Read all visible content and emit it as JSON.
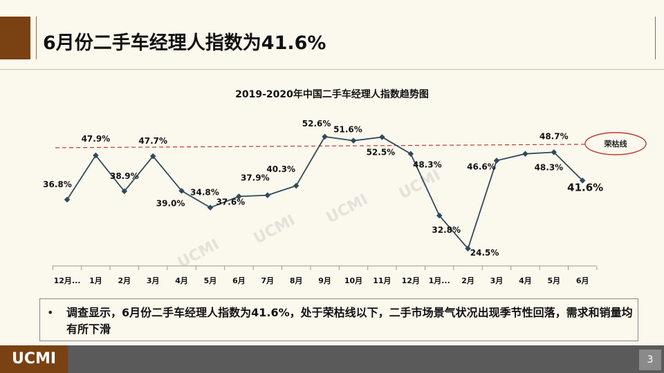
{
  "slide": {
    "title": "6月份二手车经理人指数为41.6%",
    "summary_bullet": "•",
    "summary": "调查显示，6月份二手车经理人指数为41.6%，处于荣枯线以下，二手市场景气状况出现季节性回落，需求和销量均有所下滑",
    "logo": "UCMI",
    "page_number": "3",
    "watermarks": [
      "UCMI",
      "UCMI",
      "UCMI",
      "UCMI"
    ]
  },
  "chart_data": {
    "type": "line",
    "title": "2019-2020年中国二手车经理人指数趋势图",
    "categories": [
      "12月...",
      "1月",
      "2月",
      "3月",
      "4月",
      "5月",
      "6月",
      "7月",
      "8月",
      "9月",
      "10月",
      "11月",
      "12月",
      "1月...",
      "2月",
      "3月",
      "4月",
      "5月",
      "6月"
    ],
    "values": [
      36.8,
      47.9,
      38.9,
      47.7,
      39.0,
      34.8,
      37.6,
      37.9,
      40.3,
      52.6,
      51.6,
      52.5,
      48.3,
      32.8,
      24.5,
      46.6,
      48.3,
      48.7,
      41.6
    ],
    "labels": [
      "36.8%",
      "47.9%",
      "38.9%",
      "47.7%",
      "39.0%",
      "34.8%",
      "37.6%",
      "37.9%",
      "40.3%",
      "52.6%",
      "51.6%",
      "52.5%",
      "48.3%",
      "32.8%",
      "24.5%",
      "46.6%",
      "48.3%",
      "48.7%",
      "41.6%"
    ],
    "reference_line": {
      "value": 50,
      "label": "荣枯线",
      "color": "#c0392b"
    },
    "series_color": "#2f4a5a",
    "highlight_index": 18
  }
}
